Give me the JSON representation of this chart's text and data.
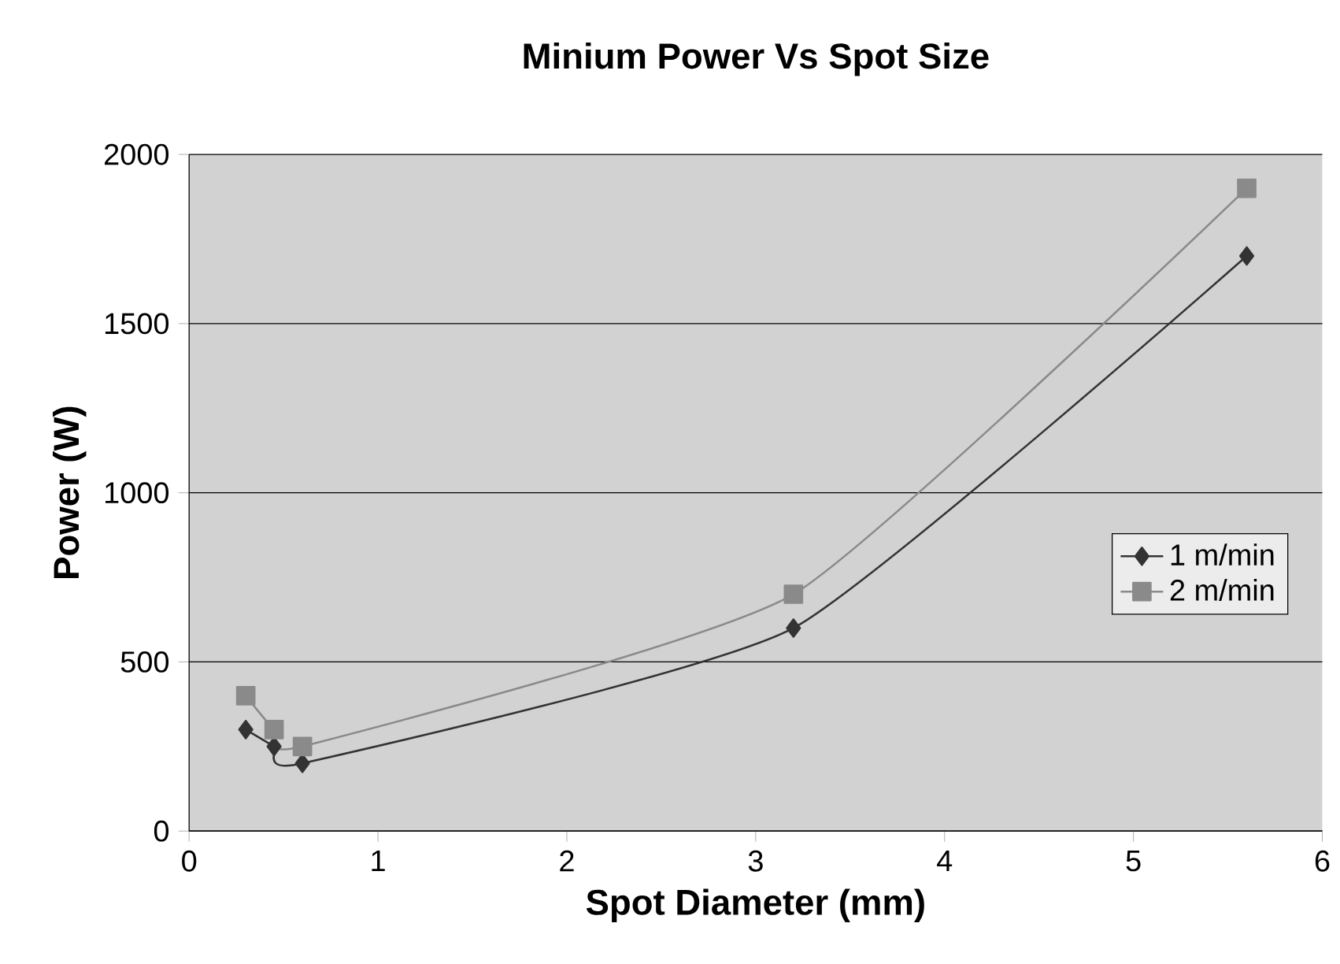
{
  "chart_data": {
    "type": "line",
    "title": "Minium Power Vs Spot Size",
    "xlabel": "Spot Diameter (mm)",
    "ylabel": "Power (W)",
    "xlim": [
      0,
      6
    ],
    "xticks": [
      0,
      1,
      2,
      3,
      4,
      5,
      6
    ],
    "ylim": [
      0,
      2000
    ],
    "yticks": [
      0,
      500,
      1000,
      1500,
      2000
    ],
    "grid": "y",
    "legend": "right",
    "series": [
      {
        "name": "1 m/min",
        "color": "#333333",
        "marker": "diamond",
        "x": [
          0.3,
          0.45,
          0.6,
          3.2,
          5.6
        ],
        "values": [
          300,
          250,
          200,
          600,
          1700
        ]
      },
      {
        "name": "2 m/min",
        "color": "#8a8a8a",
        "marker": "square",
        "x": [
          0.3,
          0.45,
          0.6,
          3.2,
          5.6
        ],
        "values": [
          400,
          300,
          250,
          700,
          1900
        ]
      }
    ]
  }
}
